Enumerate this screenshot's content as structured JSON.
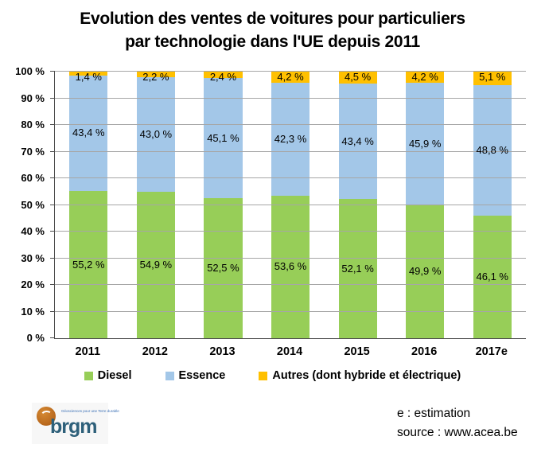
{
  "title": {
    "line1": "Evolution des ventes de voitures pour particuliers",
    "line2": "par technologie dans l'UE depuis 2011"
  },
  "chart_data": {
    "type": "bar",
    "stacked": true,
    "title": "Evolution des ventes de voitures pour particuliers par technologie dans l'UE depuis 2011",
    "categories": [
      "2011",
      "2012",
      "2013",
      "2014",
      "2015",
      "2016",
      "2017e"
    ],
    "series": [
      {
        "name": "Diesel",
        "color": "#97ce58",
        "values": [
          55.2,
          54.9,
          52.5,
          53.6,
          52.1,
          49.9,
          46.1
        ],
        "labels": [
          "55,2 %",
          "54,9 %",
          "52,5 %",
          "53,6 %",
          "52,1 %",
          "49,9 %",
          "46,1 %"
        ]
      },
      {
        "name": "Essence",
        "color": "#a3c7e8",
        "values": [
          43.4,
          43.0,
          45.1,
          42.3,
          43.4,
          45.9,
          48.8
        ],
        "labels": [
          "43,4 %",
          "43,0 %",
          "45,1 %",
          "42,3 %",
          "43,4 %",
          "45,9 %",
          "48,8 %"
        ]
      },
      {
        "name": "Autres (dont hybride et électrique)",
        "color": "#ffc000",
        "values": [
          1.4,
          2.2,
          2.4,
          4.2,
          4.5,
          4.2,
          5.1
        ],
        "labels": [
          "1,4 %",
          "2,2 %",
          "2,4 %",
          "4,2 %",
          "4,5 %",
          "4,2 %",
          "5,1 %"
        ]
      }
    ],
    "y_tick_labels": [
      "100 %",
      "90 %",
      "80 %",
      "70 %",
      "60 %",
      "50 %",
      "40 %",
      "30 %",
      "20 %",
      "10 %",
      "0 %"
    ],
    "ylim": [
      0,
      100
    ],
    "grid": true,
    "legend_position": "bottom"
  },
  "legend": {
    "items": [
      "Diesel",
      "Essence",
      "Autres (dont hybride et électrique)"
    ]
  },
  "logo": {
    "word": "brgm",
    "tagline": "Géosciences pour une Terre durable"
  },
  "footer": {
    "estimation_note": "e : estimation",
    "source_note": "source : www.acea.be"
  }
}
